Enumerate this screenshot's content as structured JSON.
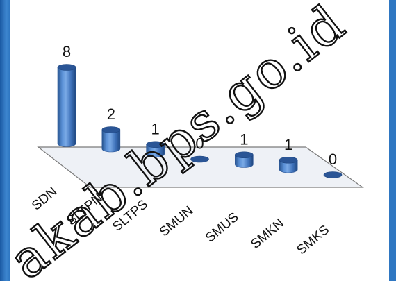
{
  "chart_data": {
    "type": "bar",
    "categories": [
      "SDN",
      "SLTPN",
      "SLTPS",
      "SMUN",
      "SMUS",
      "SMKN",
      "SMKS"
    ],
    "values": [
      8,
      2,
      1,
      0,
      1,
      1,
      0
    ],
    "data_labels": [
      "8",
      "2",
      "1",
      "0",
      "1",
      "1",
      "0"
    ],
    "title": "",
    "xlabel": "",
    "ylabel": "",
    "style": "3d-cylinder",
    "grid": false,
    "legend": "none",
    "colors": {
      "bar": "#4a7fc4",
      "bar_top": "#2a5596",
      "floor": "#eef1f6",
      "floor_edge": "#7a7a7a"
    }
  },
  "watermark": "akab.bps.go.id"
}
